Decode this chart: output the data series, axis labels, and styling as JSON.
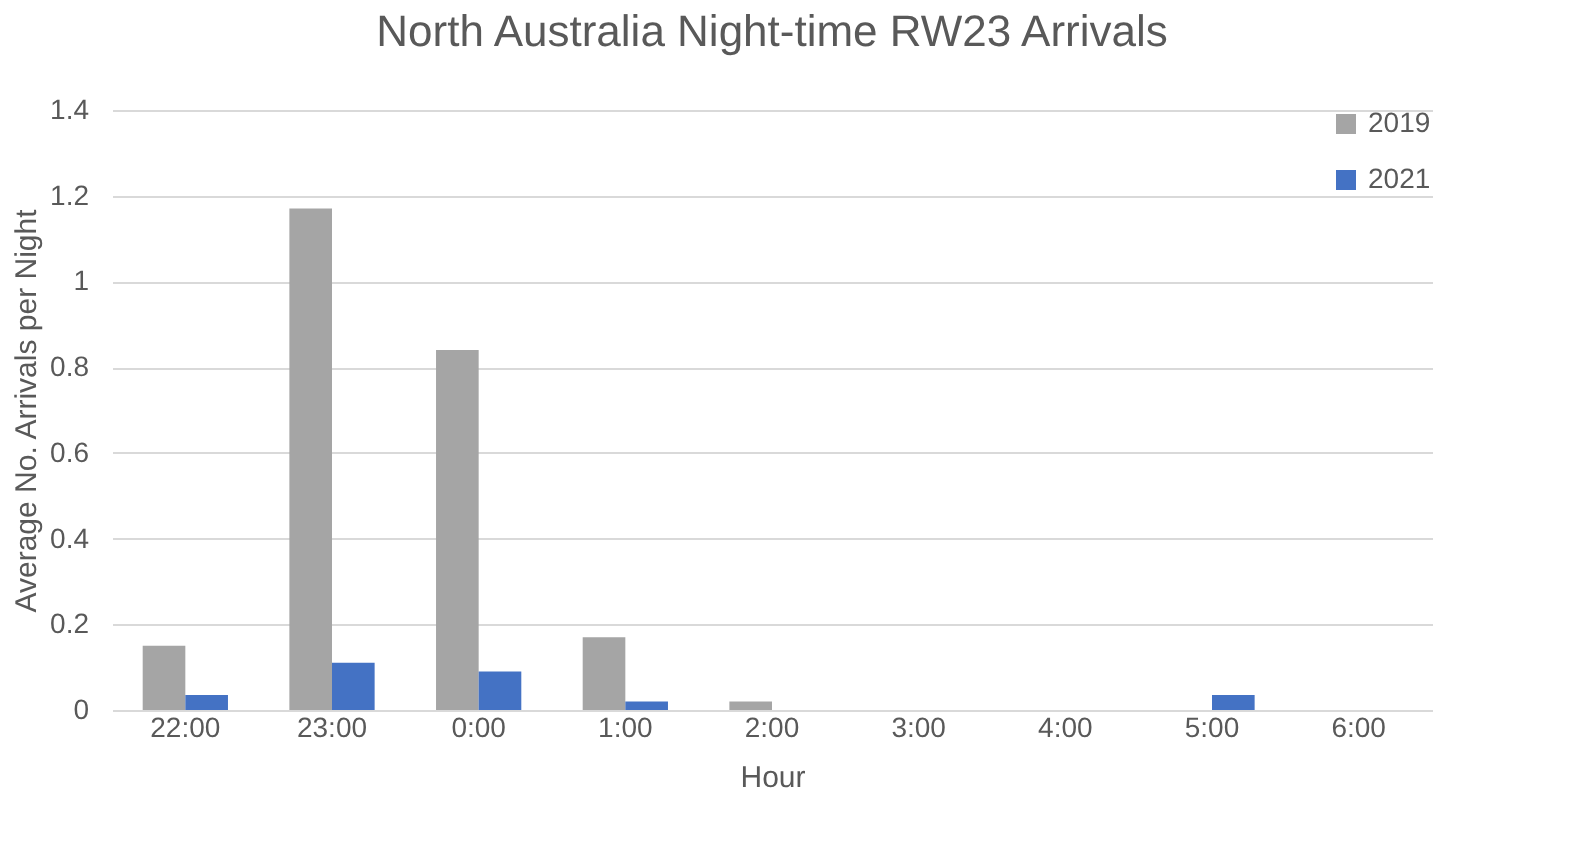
{
  "chart_data": {
    "type": "bar",
    "title": "North Australia Night-time RW23 Arrivals",
    "xlabel": "Hour",
    "ylabel": "Average No. Arrivals per Night",
    "categories": [
      "22:00",
      "23:00",
      "0:00",
      "1:00",
      "2:00",
      "3:00",
      "4:00",
      "5:00",
      "6:00"
    ],
    "series": [
      {
        "name": "2019",
        "color": "#a5a5a5",
        "values": [
          0.15,
          1.17,
          0.84,
          0.17,
          0.02,
          0,
          0,
          0,
          0
        ]
      },
      {
        "name": "2021",
        "color": "#4472c4",
        "values": [
          0.035,
          0.11,
          0.09,
          0.02,
          0,
          0,
          0,
          0.035,
          0
        ]
      }
    ],
    "ylim": [
      0,
      1.4
    ],
    "yticks": [
      0,
      0.2,
      0.4,
      0.6,
      0.8,
      1,
      1.2,
      1.4
    ],
    "grid": "y",
    "legend": "top right"
  }
}
